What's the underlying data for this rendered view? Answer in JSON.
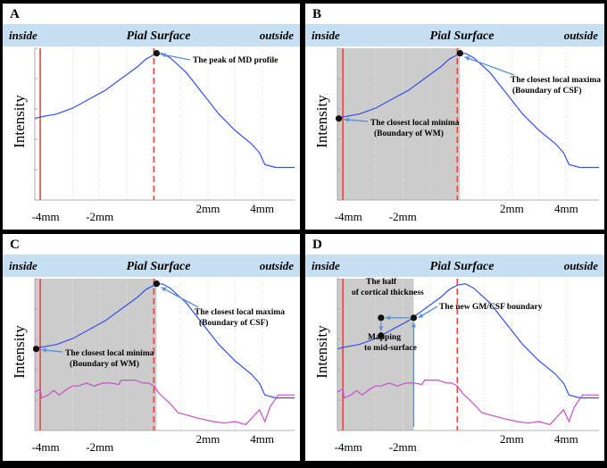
{
  "figure": {
    "panels": [
      {
        "letter": "A",
        "header": {
          "inside": "inside",
          "title": "Pial Surface",
          "outside": "outside"
        },
        "ylabel": "Intensity",
        "ticks": [
          "-4mm",
          "-2mm",
          "2mm",
          "4mm"
        ],
        "annotations": [
          {
            "text": "The peak of MD profile"
          }
        ]
      },
      {
        "letter": "B",
        "header": {
          "inside": "inside",
          "title": "Pial Surface",
          "outside": "outside"
        },
        "ylabel": "Intensity",
        "ticks": [
          "-4mm",
          "-2mm",
          "2mm",
          "4mm"
        ],
        "annotations": [
          {
            "text": "The closest local maxima"
          },
          {
            "text": "(Boundary of CSF)"
          },
          {
            "text": "The closest local minima"
          },
          {
            "text": "(Boundary of WM)"
          }
        ]
      },
      {
        "letter": "C",
        "header": {
          "inside": "inside",
          "title": "Pial Surface",
          "outside": "outside"
        },
        "ylabel": "Intensity",
        "ticks": [
          "-4mm",
          "-2mm",
          "2mm",
          "4mm"
        ],
        "annotations": [
          {
            "text": "The closest local maxima"
          },
          {
            "text": "(Boundary of CSF)"
          },
          {
            "text": "The closest local minima"
          },
          {
            "text": "(Boundary of WM)"
          }
        ]
      },
      {
        "letter": "D",
        "header": {
          "inside": "inside",
          "title": "Pial Surface",
          "outside": "outside"
        },
        "ylabel": "Intensity",
        "ticks": [
          "-4mm",
          "-2mm",
          "2mm",
          "4mm"
        ],
        "annotations": [
          {
            "text": "The half"
          },
          {
            "text": "of cortical thickness"
          },
          {
            "text": "The new GM/CSF boundary"
          },
          {
            "text": "Mapping"
          },
          {
            "text": "to mid-surface"
          }
        ]
      }
    ]
  },
  "chart_data": [
    {
      "type": "line",
      "panel": "A",
      "title": "Pial Surface",
      "xlabel": "",
      "ylabel": "Intensity",
      "xlim": [
        -4.4,
        5.2
      ],
      "ylim": [
        0,
        1
      ],
      "x_tick_values": [
        -4,
        -2,
        2,
        4
      ],
      "tick_labels": [
        "-4mm",
        "-2mm",
        "2mm",
        "4mm"
      ],
      "vlines": [
        {
          "x": -4.2,
          "style": "solid",
          "color": "#e8463b"
        },
        {
          "x": 0,
          "style": "dashed",
          "color": "#e8463b"
        }
      ],
      "series": [
        {
          "name": "MD profile",
          "color": "#3650ea",
          "x": [
            -4.4,
            -4.2,
            -3.6,
            -3.0,
            -2.4,
            -1.8,
            -1.2,
            -0.6,
            -0.3,
            0,
            0.3,
            0.6,
            1.2,
            1.8,
            2.4,
            3.0,
            3.6,
            3.9,
            4.1,
            4.5,
            5.2
          ],
          "y": [
            0.55,
            0.56,
            0.58,
            0.62,
            0.68,
            0.74,
            0.82,
            0.9,
            0.95,
            0.98,
            0.99,
            0.96,
            0.86,
            0.72,
            0.58,
            0.47,
            0.38,
            0.32,
            0.24,
            0.22,
            0.22
          ]
        }
      ],
      "markers": [
        {
          "x": 0.1,
          "y": 0.99,
          "label": "The peak of MD profile"
        }
      ]
    },
    {
      "type": "line",
      "panel": "B",
      "title": "Pial Surface",
      "xlabel": "",
      "ylabel": "Intensity",
      "xlim": [
        -4.4,
        5.2
      ],
      "ylim": [
        0,
        1
      ],
      "x_tick_values": [
        -4,
        -2,
        2,
        4
      ],
      "tick_labels": [
        "-4mm",
        "-2mm",
        "2mm",
        "4mm"
      ],
      "shaded_x_range": [
        -4.4,
        0.1
      ],
      "vlines": [
        {
          "x": -4.2,
          "style": "solid",
          "color": "#e8463b"
        },
        {
          "x": 0,
          "style": "dashed",
          "color": "#e8463b"
        }
      ],
      "series": [
        {
          "name": "MD profile",
          "color": "#3650ea",
          "x": [
            -4.4,
            -4.2,
            -3.6,
            -3.0,
            -2.4,
            -1.8,
            -1.2,
            -0.6,
            -0.3,
            0,
            0.3,
            0.6,
            1.2,
            1.8,
            2.4,
            3.0,
            3.6,
            3.9,
            4.1,
            4.5,
            5.2
          ],
          "y": [
            0.55,
            0.56,
            0.58,
            0.62,
            0.68,
            0.74,
            0.82,
            0.9,
            0.95,
            0.98,
            0.99,
            0.96,
            0.86,
            0.72,
            0.58,
            0.47,
            0.38,
            0.32,
            0.24,
            0.22,
            0.22
          ]
        }
      ],
      "markers": [
        {
          "x": 0.1,
          "y": 0.99,
          "label": "The closest local maxima (Boundary of CSF)"
        },
        {
          "x": -4.35,
          "y": 0.55,
          "label": "The closest local minima (Boundary of WM)"
        }
      ]
    },
    {
      "type": "line",
      "panel": "C",
      "title": "Pial Surface",
      "xlabel": "",
      "ylabel": "Intensity",
      "xlim": [
        -4.4,
        5.2
      ],
      "ylim": [
        0,
        1
      ],
      "x_tick_values": [
        -4,
        -2,
        2,
        4
      ],
      "tick_labels": [
        "-4mm",
        "-2mm",
        "2mm",
        "4mm"
      ],
      "shaded_x_range": [
        -4.4,
        0.1
      ],
      "vlines": [
        {
          "x": -4.2,
          "style": "solid",
          "color": "#e8463b"
        },
        {
          "x": 0,
          "style": "dashed",
          "color": "#e8463b"
        }
      ],
      "series": [
        {
          "name": "MD profile",
          "color": "#3650ea",
          "x": [
            -4.4,
            -4.2,
            -3.6,
            -3.0,
            -2.4,
            -1.8,
            -1.2,
            -0.6,
            -0.3,
            0,
            0.3,
            0.6,
            1.2,
            1.8,
            2.4,
            3.0,
            3.6,
            3.9,
            4.1,
            4.5,
            5.2
          ],
          "y": [
            0.55,
            0.56,
            0.58,
            0.62,
            0.68,
            0.74,
            0.82,
            0.9,
            0.95,
            0.98,
            0.99,
            0.96,
            0.86,
            0.72,
            0.58,
            0.47,
            0.38,
            0.32,
            0.24,
            0.22,
            0.22
          ]
        },
        {
          "name": "second profile",
          "color": "#c94fc8",
          "x": [
            -4.4,
            -4.2,
            -4.15,
            -3.9,
            -3.7,
            -3.5,
            -3.2,
            -3.0,
            -2.8,
            -2.5,
            -2.2,
            -1.9,
            -1.6,
            -1.3,
            -1.2,
            -1.0,
            -0.7,
            -0.4,
            -0.2,
            0,
            0.2,
            0.6,
            0.9,
            1.3,
            1.7,
            2.2,
            2.6,
            3.0,
            3.4,
            3.7,
            3.9,
            4.1,
            4.3,
            4.6,
            5.2
          ],
          "y": [
            0.26,
            0.28,
            0.22,
            0.24,
            0.27,
            0.24,
            0.28,
            0.3,
            0.3,
            0.32,
            0.3,
            0.32,
            0.32,
            0.31,
            0.34,
            0.34,
            0.34,
            0.32,
            0.32,
            0.3,
            0.25,
            0.18,
            0.12,
            0.1,
            0.08,
            0.06,
            0.05,
            0.06,
            0.04,
            0.1,
            0.14,
            0.06,
            0.16,
            0.24,
            0.24
          ]
        }
      ],
      "markers": [
        {
          "x": 0.1,
          "y": 0.99,
          "label": "The closest local maxima (Boundary of CSF)"
        },
        {
          "x": -4.35,
          "y": 0.55,
          "label": "The closest local minima (Boundary of WM)"
        }
      ]
    },
    {
      "type": "line",
      "panel": "D",
      "title": "Pial Surface",
      "xlabel": "",
      "ylabel": "Intensity",
      "xlim": [
        -4.4,
        5.2
      ],
      "ylim": [
        0,
        1
      ],
      "x_tick_values": [
        -4,
        -2,
        2,
        4
      ],
      "tick_labels": [
        "-4mm",
        "-2mm",
        "2mm",
        "4mm"
      ],
      "shaded_x_range": [
        -4.4,
        -1.6
      ],
      "vlines": [
        {
          "x": -4.2,
          "style": "solid",
          "color": "#e8463b"
        },
        {
          "x": 0,
          "style": "dashed",
          "color": "#e8463b"
        }
      ],
      "series": [
        {
          "name": "MD profile",
          "color": "#3650ea",
          "x": [
            -4.4,
            -4.2,
            -3.6,
            -3.0,
            -2.4,
            -1.8,
            -1.2,
            -0.6,
            -0.3,
            0,
            0.3,
            0.6,
            1.2,
            1.8,
            2.4,
            3.0,
            3.6,
            3.9,
            4.1,
            4.5,
            5.2
          ],
          "y": [
            0.55,
            0.56,
            0.58,
            0.62,
            0.68,
            0.74,
            0.82,
            0.9,
            0.95,
            0.98,
            0.99,
            0.96,
            0.86,
            0.72,
            0.58,
            0.47,
            0.38,
            0.32,
            0.24,
            0.22,
            0.22
          ]
        },
        {
          "name": "second profile",
          "color": "#c94fc8",
          "x": [
            -4.4,
            -4.2,
            -4.15,
            -3.9,
            -3.7,
            -3.5,
            -3.2,
            -3.0,
            -2.8,
            -2.5,
            -2.2,
            -1.9,
            -1.6,
            -1.3,
            -1.2,
            -1.0,
            -0.7,
            -0.4,
            -0.2,
            0,
            0.2,
            0.6,
            0.9,
            1.3,
            1.7,
            2.2,
            2.6,
            3.0,
            3.4,
            3.7,
            3.9,
            4.1,
            4.3,
            4.6,
            5.2
          ],
          "y": [
            0.26,
            0.28,
            0.22,
            0.24,
            0.27,
            0.24,
            0.28,
            0.3,
            0.3,
            0.32,
            0.3,
            0.32,
            0.32,
            0.31,
            0.34,
            0.34,
            0.34,
            0.32,
            0.32,
            0.3,
            0.25,
            0.18,
            0.12,
            0.1,
            0.08,
            0.06,
            0.05,
            0.06,
            0.04,
            0.1,
            0.14,
            0.06,
            0.16,
            0.24,
            0.24
          ]
        }
      ],
      "markers": [
        {
          "x": -1.6,
          "y": 0.76,
          "label": "The new GM/CSF boundary"
        },
        {
          "x": -2.8,
          "y": 0.76,
          "label": "The half of cortical thickness"
        },
        {
          "x": -2.8,
          "y": 0.64,
          "label": "Mapping to mid-surface"
        }
      ]
    }
  ]
}
